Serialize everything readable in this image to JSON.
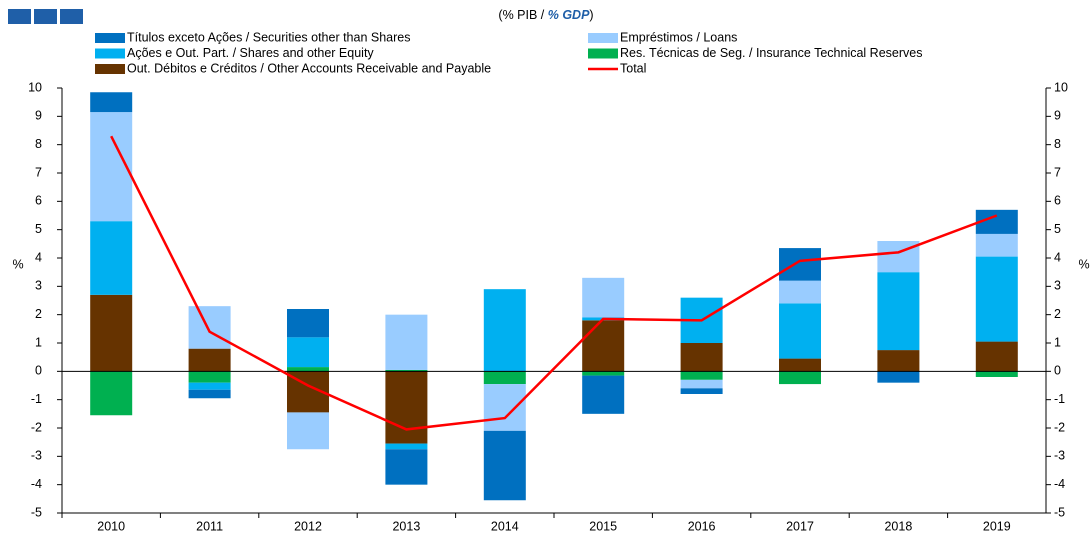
{
  "chart_data": {
    "type": "bar",
    "subtitle": {
      "pt": "(% PIB /",
      "en": "% GDP",
      "close": ")"
    },
    "ylabel": "%",
    "y2label": "%",
    "categories": [
      "2010",
      "2011",
      "2012",
      "2013",
      "2014",
      "2015",
      "2016",
      "2017",
      "2018",
      "2019"
    ],
    "series": [
      {
        "name": "Títulos exceto Ações / Securities other than Shares",
        "color": "#0070c0",
        "values": [
          0.7,
          -0.3,
          1.0,
          -1.25,
          -2.45,
          -1.35,
          -0.2,
          1.15,
          -0.4,
          0.85
        ]
      },
      {
        "name": "Empréstimos / Loans",
        "color": "#99ccff",
        "values": [
          3.85,
          1.5,
          -1.3,
          1.95,
          -1.65,
          1.4,
          -0.3,
          0.8,
          1.1,
          0.8
        ]
      },
      {
        "name": "Ações e Out. Part. / Shares and other Equity",
        "color": "#00b0f0",
        "values": [
          2.6,
          -0.25,
          1.05,
          -0.2,
          2.9,
          0.1,
          1.6,
          1.95,
          2.75,
          3.0
        ]
      },
      {
        "name": "Res. Técnicas de Seg. / Insurance Technical Reserves",
        "color": "#00b050",
        "values": [
          -1.55,
          -0.4,
          0.15,
          0.05,
          -0.45,
          -0.15,
          -0.3,
          -0.45,
          0,
          -0.2
        ]
      },
      {
        "name": "Out. Débitos e Créditos / Other Accounts Receivable and Payable",
        "color": "#663300",
        "values": [
          2.7,
          0.8,
          -1.45,
          -2.55,
          0,
          1.8,
          1.0,
          0.45,
          0.75,
          1.05
        ]
      },
      {
        "name": "Total",
        "color": "#ff0000",
        "type": "line",
        "values": [
          8.3,
          1.4,
          -0.5,
          -2.05,
          -1.65,
          1.85,
          1.8,
          3.9,
          4.2,
          5.5
        ]
      }
    ],
    "stack_order": [
      4,
      3,
      2,
      1,
      0
    ],
    "ylim": [
      -5,
      10
    ],
    "yticks": [
      -5,
      -4,
      -3,
      -2,
      -1,
      0,
      1,
      2,
      3,
      4,
      5,
      6,
      7,
      8,
      9,
      10
    ],
    "y2lim": [
      -5,
      10
    ],
    "y2ticks": [
      -5,
      -4,
      -3,
      -2,
      -1,
      0,
      1,
      2,
      3,
      4,
      5,
      6,
      7,
      8,
      9,
      10
    ]
  }
}
